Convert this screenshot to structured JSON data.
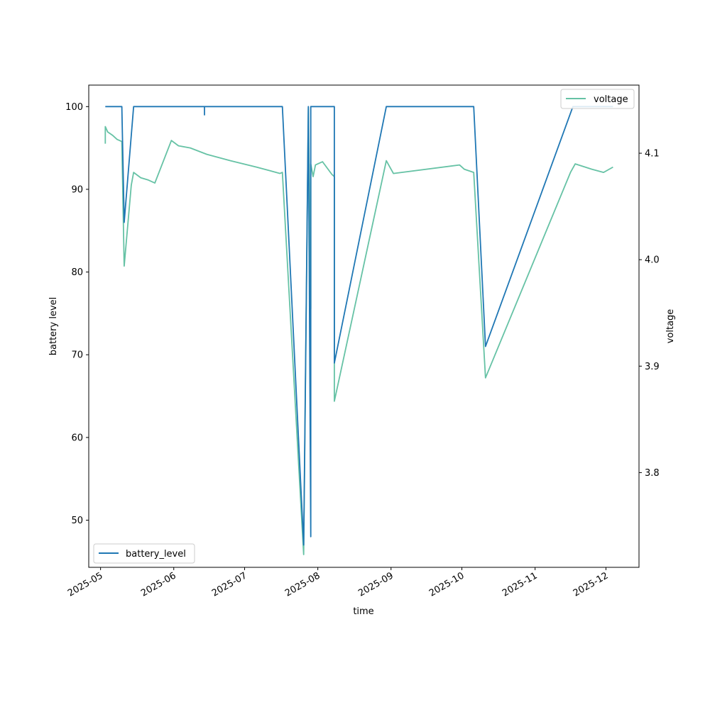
{
  "chart_data": {
    "type": "line",
    "title": "",
    "xlabel": "time",
    "ylabel_left": "battery level",
    "ylabel_right": "voltage",
    "x_ticks": [
      "2025-05",
      "2025-06",
      "2025-07",
      "2025-08",
      "2025-09",
      "2025-10",
      "2025-11",
      "2025-12"
    ],
    "x_range": [
      "2025-04-26",
      "2025-12-15"
    ],
    "y_left_ticks": [
      50,
      60,
      70,
      80,
      90,
      100
    ],
    "y_left_range": [
      44.3,
      102.6
    ],
    "y_right_ticks": [
      3.8,
      3.9,
      4.0,
      4.1
    ],
    "y_right_range": [
      3.711,
      4.164
    ],
    "grid": false,
    "series": [
      {
        "name": "battery_level",
        "axis": "left",
        "color": "#1f77b4",
        "legend_position": "lower-left",
        "points": [
          [
            "2025-05-03",
            100
          ],
          [
            "2025-05-10",
            100
          ],
          [
            "2025-05-11",
            86
          ],
          [
            "2025-05-15",
            100
          ],
          [
            "2025-06-14",
            100
          ],
          [
            "2025-06-14",
            99
          ],
          [
            "2025-06-14",
            100
          ],
          [
            "2025-07-17",
            100
          ],
          [
            "2025-07-26",
            47
          ],
          [
            "2025-07-28",
            100
          ],
          [
            "2025-07-29",
            48
          ],
          [
            "2025-07-29",
            100
          ],
          [
            "2025-08-08",
            100
          ],
          [
            "2025-08-08",
            69
          ],
          [
            "2025-08-30",
            100
          ],
          [
            "2025-10-06",
            100
          ],
          [
            "2025-10-11",
            71
          ],
          [
            "2025-11-17",
            100
          ],
          [
            "2025-12-04",
            100
          ]
        ]
      },
      {
        "name": "voltage",
        "axis": "right",
        "color": "#66c2a5",
        "legend_position": "upper-right",
        "points": [
          [
            "2025-05-03",
            4.109
          ],
          [
            "2025-05-03",
            4.125
          ],
          [
            "2025-05-04",
            4.12
          ],
          [
            "2025-05-06",
            4.117
          ],
          [
            "2025-05-08",
            4.113
          ],
          [
            "2025-05-10",
            4.111
          ],
          [
            "2025-05-11",
            3.994
          ],
          [
            "2025-05-14",
            4.07
          ],
          [
            "2025-05-15",
            4.082
          ],
          [
            "2025-05-18",
            4.077
          ],
          [
            "2025-05-21",
            4.075
          ],
          [
            "2025-05-24",
            4.072
          ],
          [
            "2025-05-31",
            4.112
          ],
          [
            "2025-06-03",
            4.107
          ],
          [
            "2025-06-08",
            4.105
          ],
          [
            "2025-06-15",
            4.099
          ],
          [
            "2025-06-25",
            4.093
          ],
          [
            "2025-07-06",
            4.087
          ],
          [
            "2025-07-16",
            4.081
          ],
          [
            "2025-07-17",
            4.082
          ],
          [
            "2025-07-26",
            3.723
          ],
          [
            "2025-07-28",
            4.142
          ],
          [
            "2025-07-28",
            4.142
          ],
          [
            "2025-07-29",
            3.954
          ],
          [
            "2025-07-29",
            4.09
          ],
          [
            "2025-07-30",
            4.078
          ],
          [
            "2025-07-31",
            4.089
          ],
          [
            "2025-08-03",
            4.092
          ],
          [
            "2025-08-07",
            4.08
          ],
          [
            "2025-08-08",
            4.078
          ],
          [
            "2025-08-08",
            3.867
          ],
          [
            "2025-08-30",
            4.093
          ],
          [
            "2025-08-31",
            4.089
          ],
          [
            "2025-09-02",
            4.081
          ],
          [
            "2025-09-30",
            4.089
          ],
          [
            "2025-10-02",
            4.085
          ],
          [
            "2025-10-06",
            4.082
          ],
          [
            "2025-10-11",
            3.889
          ],
          [
            "2025-11-16",
            4.082
          ],
          [
            "2025-11-18",
            4.09
          ],
          [
            "2025-11-25",
            4.085
          ],
          [
            "2025-11-30",
            4.082
          ],
          [
            "2025-12-04",
            4.087
          ]
        ]
      }
    ]
  }
}
